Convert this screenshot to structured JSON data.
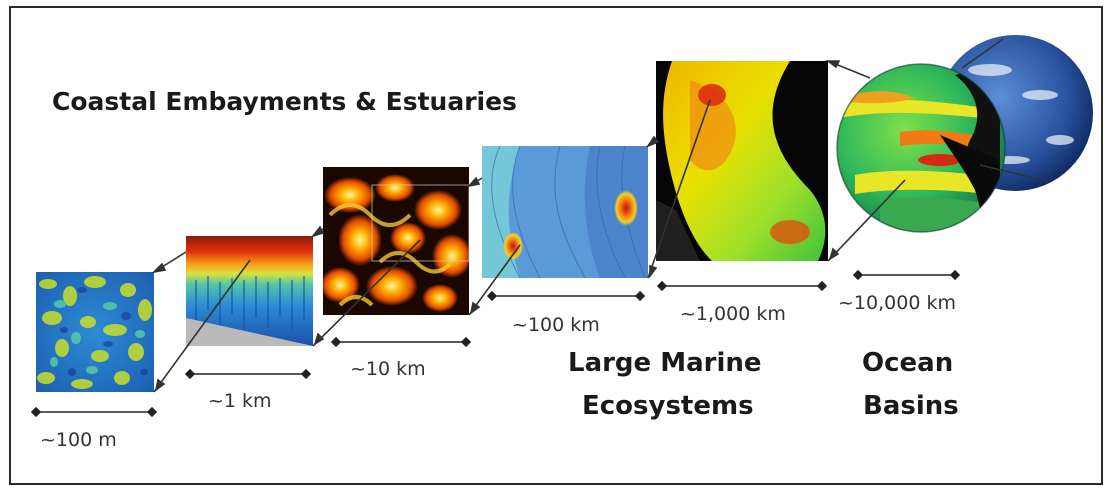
{
  "labels": {
    "coastal": "Coastal Embayments & Estuaries",
    "lme_line1": "Large Marine",
    "lme_line2": "Ecosystems",
    "ocean_line1": "Ocean",
    "ocean_line2": "Basins"
  },
  "scales": {
    "s100m": "~100 m",
    "s1km": "~1 km",
    "s10km": "~10 km",
    "s100km": "~100 km",
    "s1000km": "~1,000 km",
    "s10000km": "~10,000 km"
  }
}
